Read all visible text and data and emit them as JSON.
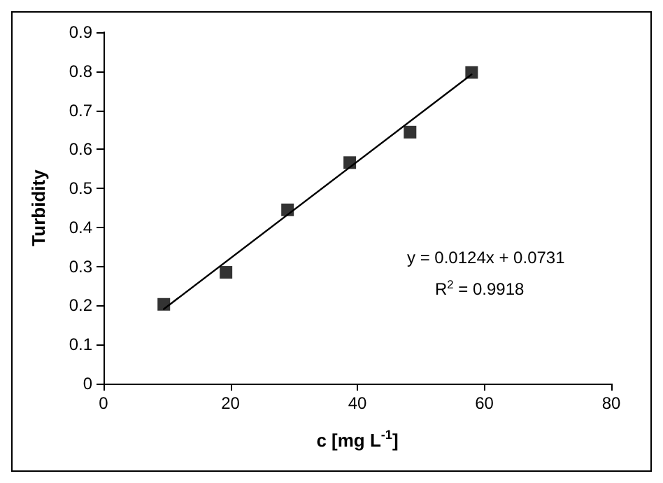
{
  "chart_data": {
    "type": "scatter",
    "xlabel": "c [mg L$^{-1}$]",
    "ylabel": "Turbidity",
    "x": [
      9.5,
      19.3,
      29,
      38.8,
      48.3,
      58
    ],
    "series": [
      {
        "color": "#000000",
        "marker": "square",
        "values": [
          0.203,
          0.285,
          0.445,
          0.566,
          0.644,
          0.797
        ]
      },
      {
        "type": "line",
        "color": "#000000",
        "marker": "none",
        "x": [
          9.5,
          58
        ],
        "values": [
          0.191,
          0.792
        ]
      }
    ],
    "xlim": [
      0,
      80
    ],
    "xticks": [
      0,
      20,
      40,
      60,
      80
    ],
    "ylim": [
      0,
      0.9
    ],
    "yticks": [
      0,
      0.1,
      0.2,
      0.3,
      0.4,
      0.5,
      0.6,
      0.7,
      0.8,
      0.9
    ],
    "grid": false,
    "annotations": [
      "y = 0.0124x + 0.0731",
      "R$^{2}$ = 0.9918"
    ]
  }
}
